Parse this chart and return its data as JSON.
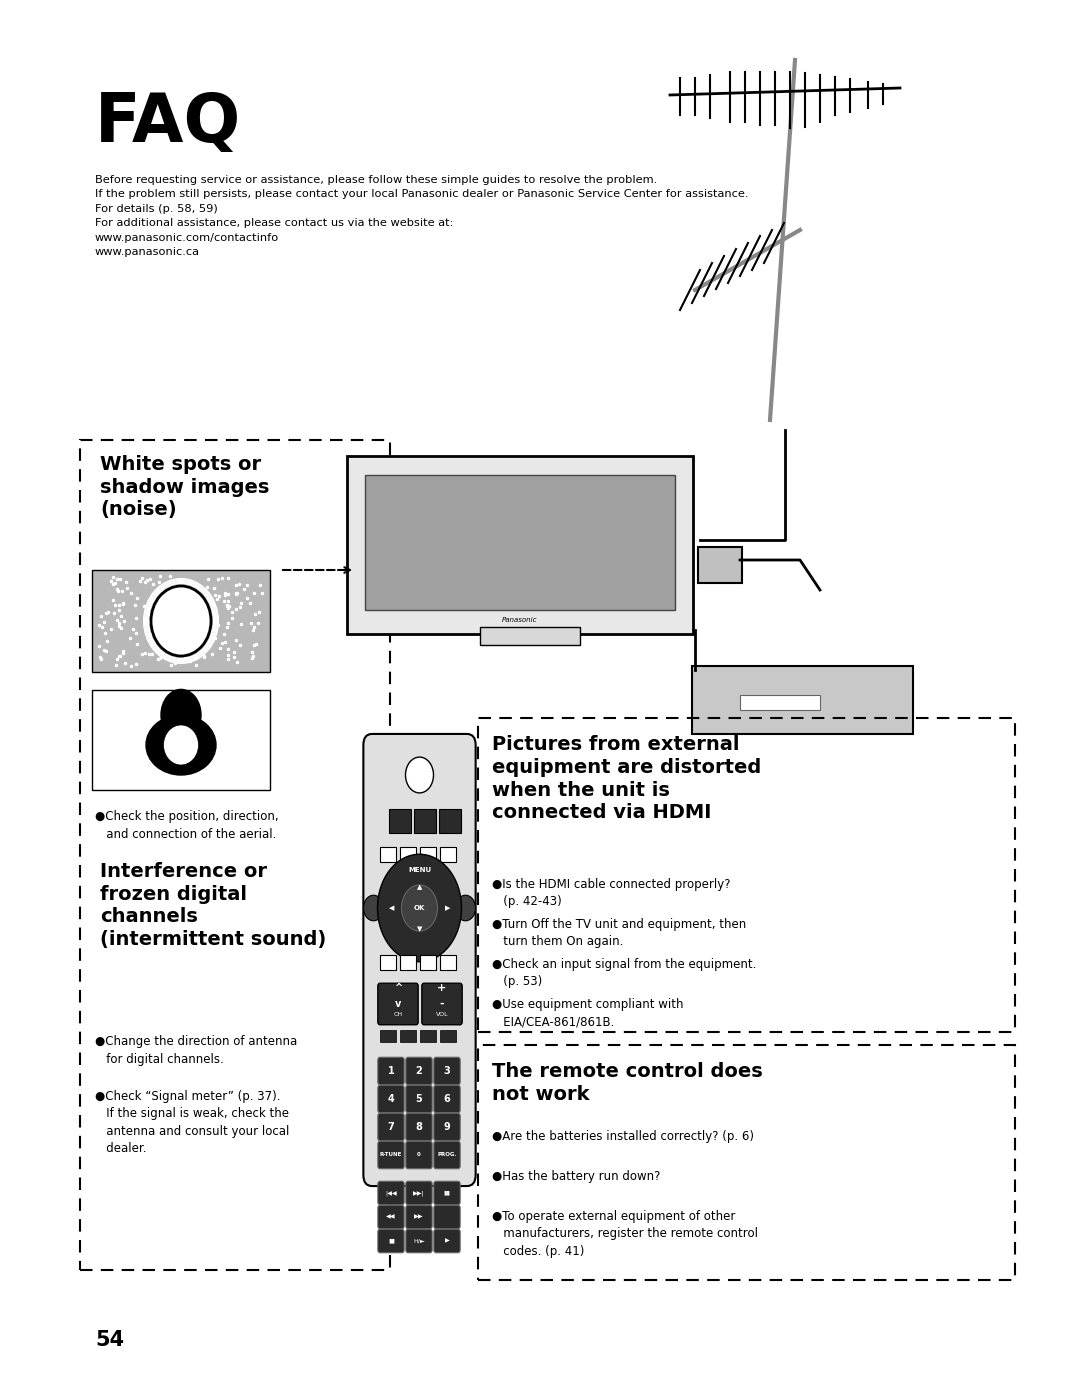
{
  "background_color": "#ffffff",
  "page_width": 10.8,
  "page_height": 13.82,
  "title": "FAQ",
  "intro_line1": "Before requesting service or assistance, please follow these simple guides to resolve the problem.",
  "intro_line2": "If the problem still persists, please contact your local Panasonic dealer or Panasonic Service Center for assistance.",
  "intro_line3": "For details (p. 58, 59)",
  "intro_line4": "For additional assistance, please contact us via the website at:",
  "intro_line5": "www.panasonic.com/contactinfo",
  "intro_line6": "www.panasonic.ca",
  "box1_title": "White spots or\nshadow images\n(noise)",
  "box1_bullet": "●Check the position, direction,\n   and connection of the aerial.",
  "box2_title": "Interference or\nfrozen digital\nchannels\n(intermittent sound)",
  "box2_bullet1": "●Change the direction of antenna\n   for digital channels.",
  "box2_bullet2": "●Check “Signal meter” (p. 37).\n   If the signal is weak, check the\n   antenna and consult your local\n   dealer.",
  "box3_title": "Pictures from external\nequipment are distorted\nwhen the unit is\nconnected via HDMI",
  "box3_bullet1": "●Is the HDMI cable connected properly?\n   (p. 42-43)",
  "box3_bullet2": "●Turn Off the TV unit and equipment, then\n   turn them On again.",
  "box3_bullet3": "●Check an input signal from the equipment.\n   (p. 53)",
  "box3_bullet4": "●Use equipment compliant with\n   EIA/CEA-861/861B.",
  "box4_title": "The remote control does\nnot work",
  "box4_bullet1": "●Are the batteries installed correctly? (p. 6)",
  "box4_bullet2": "●Has the battery run down?",
  "box4_bullet3": "●To operate external equipment of other\n   manufacturers, register the remote control\n   codes. (p. 41)",
  "page_num": "54"
}
